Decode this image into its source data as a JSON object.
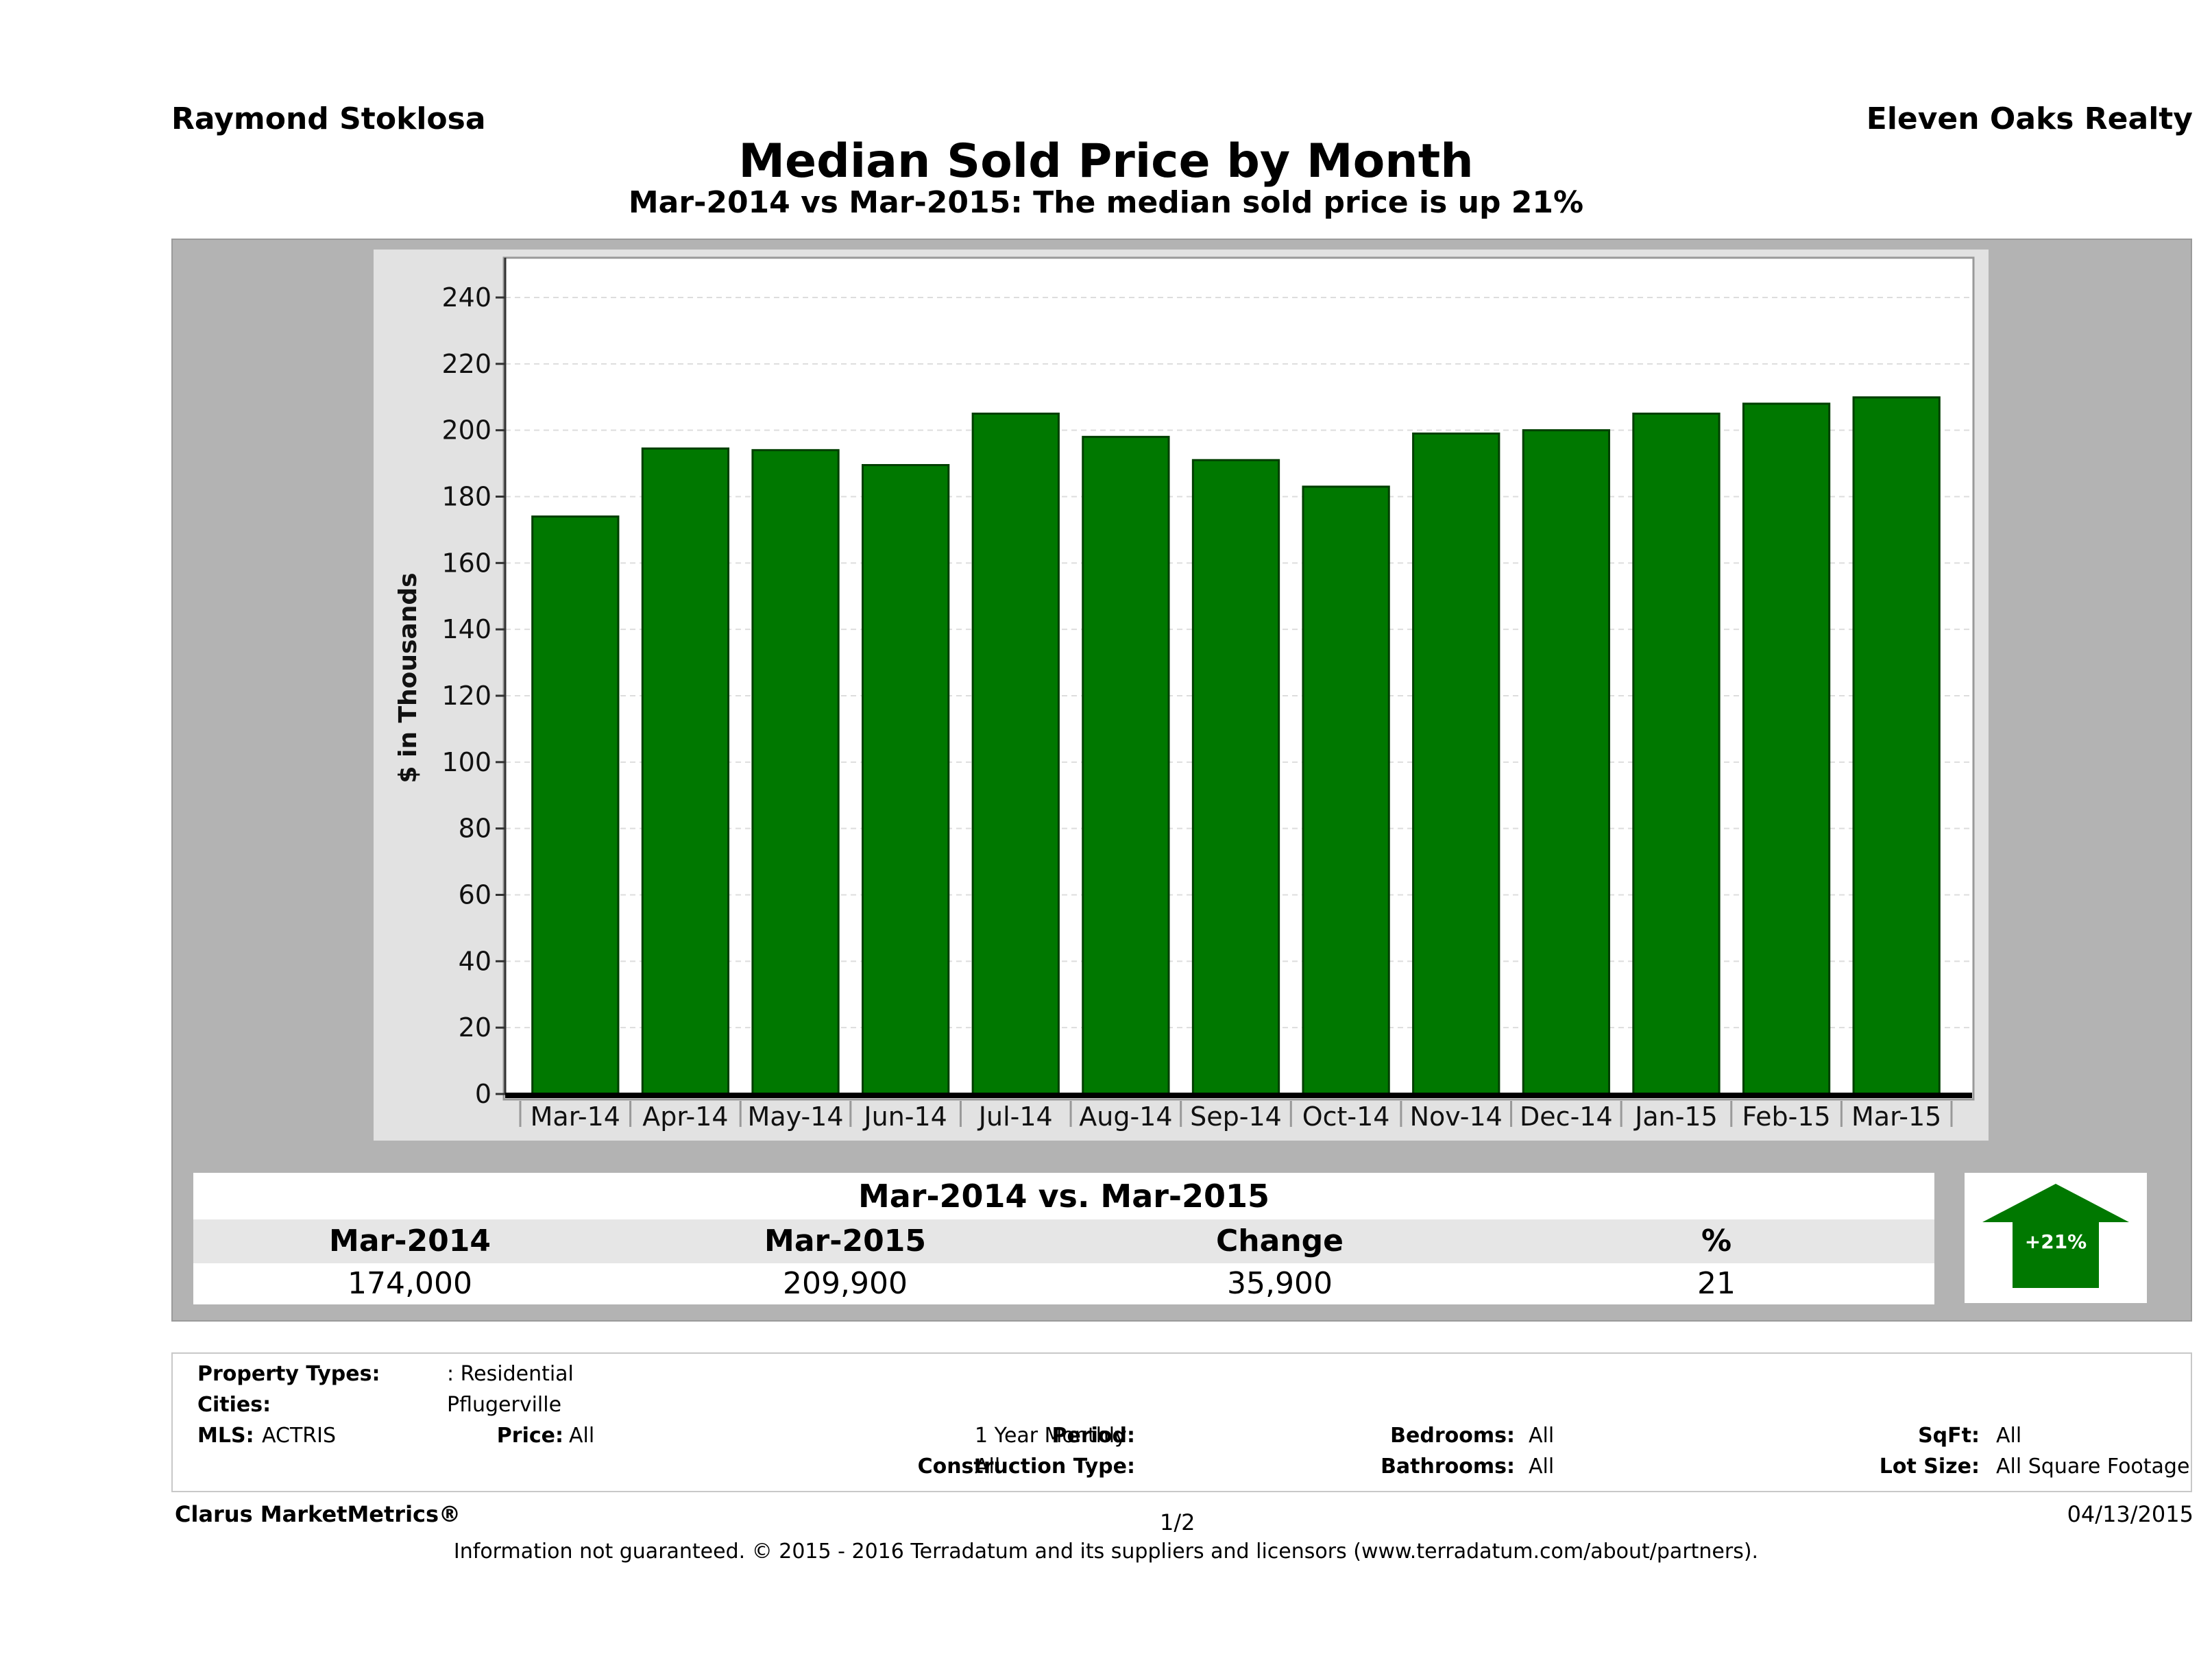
{
  "header": {
    "agent": "Raymond Stoklosa",
    "brokerage": "Eleven Oaks Realty",
    "title": "Median Sold Price by Month",
    "subtitle": "Mar-2014 vs Mar-2015: The median sold price is up 21%"
  },
  "chart_data": {
    "type": "bar",
    "title": "Median Sold Price by Month",
    "subtitle": "Mar-2014 vs Mar-2015: The median sold price is up 21%",
    "categories": [
      "Mar-14",
      "Apr-14",
      "May-14",
      "Jun-14",
      "Jul-14",
      "Aug-14",
      "Sep-14",
      "Oct-14",
      "Nov-14",
      "Dec-14",
      "Jan-15",
      "Feb-15",
      "Mar-15"
    ],
    "values": [
      174,
      194.5,
      194,
      189.5,
      205,
      198,
      191,
      183,
      199,
      200,
      205,
      208,
      209.9
    ],
    "xlabel": "",
    "ylabel": "$ in Thousands",
    "ylim": [
      0,
      240
    ],
    "yticks": [
      0,
      20,
      40,
      60,
      80,
      100,
      120,
      140,
      160,
      180,
      200,
      220,
      240
    ],
    "grid": true,
    "bar_color": "#007800"
  },
  "comparison": {
    "heading": "Mar-2014 vs. Mar-2015",
    "labels": [
      "Mar-2014",
      "Mar-2015",
      "Change",
      "%"
    ],
    "values": [
      "174,000",
      "209,900",
      "35,900",
      "21"
    ],
    "badge": "+21%",
    "badge_color": "#007800"
  },
  "filters": {
    "property_types_label": "Property Types:",
    "property_types_value": ": Residential",
    "cities_label": "Cities:",
    "cities_value": "Pflugerville",
    "mls_label": "MLS:",
    "mls_value": "ACTRIS",
    "price_label": "Price:",
    "price_value": "All",
    "period_label": "Period:",
    "period_value": "1 Year Monthly",
    "construction_label": "Construction Type:",
    "construction_value": "All",
    "bedrooms_label": "Bedrooms:",
    "bedrooms_value": "All",
    "bathrooms_label": "Bathrooms:",
    "bathrooms_value": "All",
    "sqft_label": "SqFt:",
    "sqft_value": "All",
    "lotsize_label": "Lot Size:",
    "lotsize_value": "All Square Footage"
  },
  "footer": {
    "brand": "Clarus MarketMetrics®",
    "page": "1/2",
    "date": "04/13/2015",
    "disclaimer": "Information not guaranteed. © 2015 - 2016 Terradatum and its suppliers and licensors (www.terradatum.com/about/partners)."
  }
}
